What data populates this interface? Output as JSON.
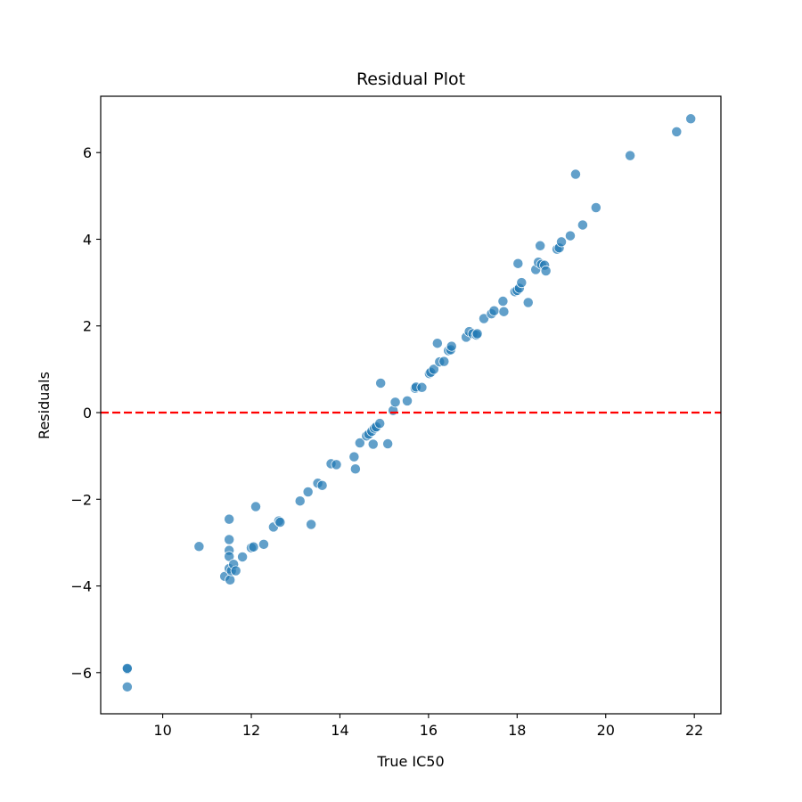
{
  "chart_data": {
    "type": "scatter",
    "title": "Residual Plot",
    "xlabel": "True IC50",
    "ylabel": "Residuals",
    "xlim": [
      8.6,
      22.6
    ],
    "ylim": [
      -6.95,
      7.3
    ],
    "xticks": [
      10,
      12,
      14,
      16,
      18,
      20,
      22
    ],
    "yticks": [
      -6,
      -4,
      -2,
      0,
      2,
      4,
      6
    ],
    "xtick_labels": [
      "10",
      "12",
      "14",
      "16",
      "18",
      "20",
      "22"
    ],
    "ytick_labels": [
      "−6",
      "−4",
      "−2",
      "0",
      "2",
      "4",
      "6"
    ],
    "reference_line": {
      "y": 0,
      "style": "dashed",
      "color": "#ff0000"
    },
    "point_color": "#1f77b4",
    "grid": false,
    "points": [
      [
        9.2,
        -5.92
      ],
      [
        9.2,
        -5.9
      ],
      [
        9.2,
        -6.33
      ],
      [
        10.82,
        -3.09
      ],
      [
        11.4,
        -3.78
      ],
      [
        11.5,
        -2.46
      ],
      [
        11.5,
        -2.93
      ],
      [
        11.5,
        -3.18
      ],
      [
        11.5,
        -3.32
      ],
      [
        11.5,
        -3.6
      ],
      [
        11.52,
        -3.86
      ],
      [
        11.55,
        -3.65
      ],
      [
        11.6,
        -3.5
      ],
      [
        11.65,
        -3.65
      ],
      [
        11.8,
        -3.33
      ],
      [
        12.0,
        -3.12
      ],
      [
        12.05,
        -3.1
      ],
      [
        12.1,
        -2.17
      ],
      [
        12.28,
        -3.04
      ],
      [
        12.5,
        -2.64
      ],
      [
        12.62,
        -2.5
      ],
      [
        12.65,
        -2.53
      ],
      [
        13.1,
        -2.04
      ],
      [
        13.28,
        -1.83
      ],
      [
        13.35,
        -2.58
      ],
      [
        13.5,
        -1.63
      ],
      [
        13.6,
        -1.68
      ],
      [
        13.8,
        -1.18
      ],
      [
        13.92,
        -1.2
      ],
      [
        14.32,
        -1.02
      ],
      [
        14.35,
        -1.3
      ],
      [
        14.45,
        -0.7
      ],
      [
        14.6,
        -0.54
      ],
      [
        14.65,
        -0.5
      ],
      [
        14.72,
        -0.43
      ],
      [
        14.75,
        -0.73
      ],
      [
        14.78,
        -0.36
      ],
      [
        14.82,
        -0.33
      ],
      [
        14.9,
        -0.25
      ],
      [
        14.92,
        0.68
      ],
      [
        15.08,
        -0.72
      ],
      [
        15.2,
        0.05
      ],
      [
        15.25,
        0.24
      ],
      [
        15.52,
        0.27
      ],
      [
        15.7,
        0.56
      ],
      [
        15.72,
        0.59
      ],
      [
        15.85,
        0.58
      ],
      [
        16.02,
        0.9
      ],
      [
        16.05,
        0.93
      ],
      [
        16.12,
        1.0
      ],
      [
        16.2,
        1.6
      ],
      [
        16.25,
        1.17
      ],
      [
        16.35,
        1.18
      ],
      [
        16.45,
        1.43
      ],
      [
        16.5,
        1.45
      ],
      [
        16.52,
        1.53
      ],
      [
        16.85,
        1.74
      ],
      [
        16.92,
        1.87
      ],
      [
        17.0,
        1.82
      ],
      [
        17.08,
        1.79
      ],
      [
        17.1,
        1.82
      ],
      [
        17.25,
        2.17
      ],
      [
        17.42,
        2.28
      ],
      [
        17.48,
        2.35
      ],
      [
        17.68,
        2.57
      ],
      [
        17.7,
        2.33
      ],
      [
        17.95,
        2.79
      ],
      [
        18.0,
        2.82
      ],
      [
        18.02,
        3.44
      ],
      [
        18.05,
        2.87
      ],
      [
        18.1,
        3.0
      ],
      [
        18.25,
        2.54
      ],
      [
        18.42,
        3.3
      ],
      [
        18.48,
        3.47
      ],
      [
        18.52,
        3.85
      ],
      [
        18.55,
        3.42
      ],
      [
        18.62,
        3.4
      ],
      [
        18.65,
        3.27
      ],
      [
        18.9,
        3.77
      ],
      [
        18.95,
        3.8
      ],
      [
        19.0,
        3.94
      ],
      [
        19.2,
        4.08
      ],
      [
        19.32,
        5.5
      ],
      [
        19.48,
        4.33
      ],
      [
        19.78,
        4.73
      ],
      [
        20.55,
        5.93
      ],
      [
        21.6,
        6.48
      ],
      [
        21.92,
        6.78
      ]
    ]
  }
}
